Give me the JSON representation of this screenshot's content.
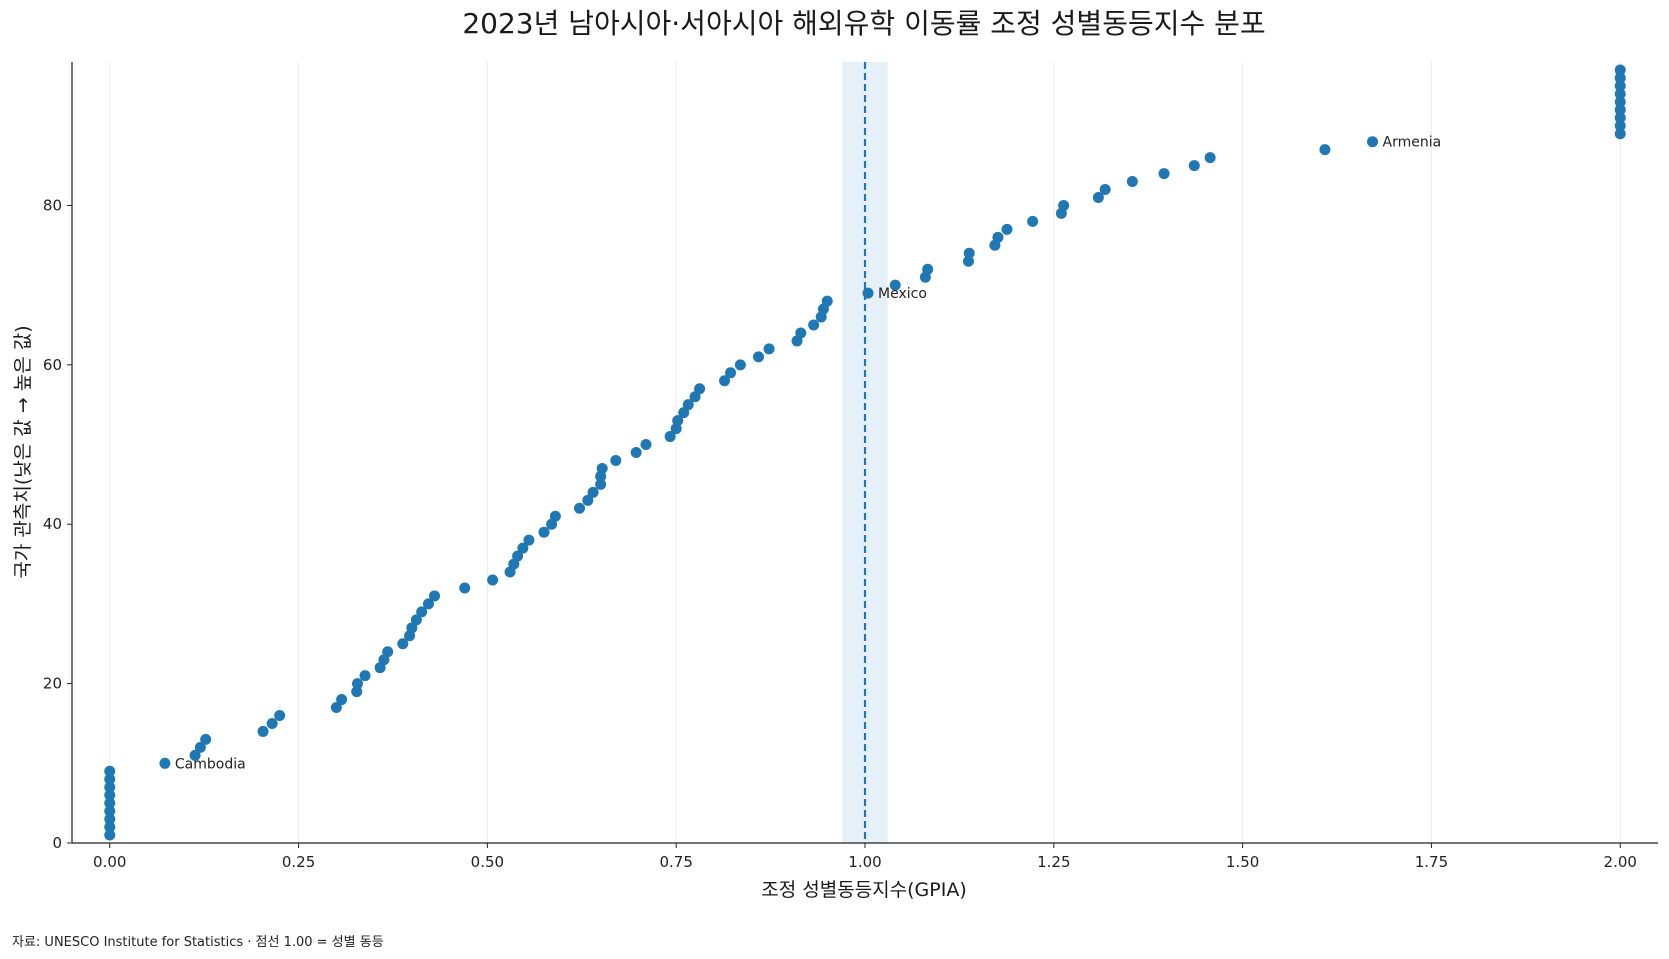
{
  "chart_data": {
    "type": "scatter",
    "title": "2023년 남아시아·서아시아 해외유학 이동률 조정 성별동등지수 분포",
    "xlabel": "조정 성별동등지수(GPIA)",
    "ylabel": "국가 관측치(낮은 값 → 높은 값)",
    "xlim": [
      -0.05,
      2.05
    ],
    "ylim": [
      0,
      98
    ],
    "x_ticks": [
      0.0,
      0.25,
      0.5,
      0.75,
      1.0,
      1.25,
      1.5,
      1.75,
      2.0
    ],
    "x_tick_labels": [
      "0.00",
      "0.25",
      "0.50",
      "0.75",
      "1.00",
      "1.25",
      "1.50",
      "1.75",
      "2.00"
    ],
    "y_ticks": [
      0,
      20,
      40,
      60,
      80
    ],
    "y_tick_labels": [
      "0",
      "20",
      "40",
      "60",
      "80"
    ],
    "grid": "vertical only",
    "marker_color": "#1f77b4",
    "reference_line": {
      "x": 1.0,
      "style": "dashed",
      "color": "#1f77b4",
      "band": [
        0.97,
        1.03
      ],
      "band_color": "#e6f0f8"
    },
    "points": [
      {
        "x": 0.0,
        "y": 1
      },
      {
        "x": 0.0,
        "y": 2
      },
      {
        "x": 0.0,
        "y": 3
      },
      {
        "x": 0.0,
        "y": 4
      },
      {
        "x": 0.0,
        "y": 5
      },
      {
        "x": 0.0,
        "y": 6
      },
      {
        "x": 0.0,
        "y": 7
      },
      {
        "x": 0.0,
        "y": 8
      },
      {
        "x": 0.0,
        "y": 9
      },
      {
        "x": 0.073,
        "y": 10
      },
      {
        "x": 0.113,
        "y": 11
      },
      {
        "x": 0.12,
        "y": 12
      },
      {
        "x": 0.127,
        "y": 13
      },
      {
        "x": 0.203,
        "y": 14
      },
      {
        "x": 0.215,
        "y": 15
      },
      {
        "x": 0.225,
        "y": 16
      },
      {
        "x": 0.3,
        "y": 17
      },
      {
        "x": 0.307,
        "y": 18
      },
      {
        "x": 0.327,
        "y": 19
      },
      {
        "x": 0.328,
        "y": 20
      },
      {
        "x": 0.338,
        "y": 21
      },
      {
        "x": 0.358,
        "y": 22
      },
      {
        "x": 0.363,
        "y": 23
      },
      {
        "x": 0.368,
        "y": 24
      },
      {
        "x": 0.388,
        "y": 25
      },
      {
        "x": 0.397,
        "y": 26
      },
      {
        "x": 0.4,
        "y": 27
      },
      {
        "x": 0.406,
        "y": 28
      },
      {
        "x": 0.413,
        "y": 29
      },
      {
        "x": 0.422,
        "y": 30
      },
      {
        "x": 0.43,
        "y": 31
      },
      {
        "x": 0.47,
        "y": 32
      },
      {
        "x": 0.507,
        "y": 33
      },
      {
        "x": 0.53,
        "y": 34
      },
      {
        "x": 0.535,
        "y": 35
      },
      {
        "x": 0.54,
        "y": 36
      },
      {
        "x": 0.547,
        "y": 37
      },
      {
        "x": 0.555,
        "y": 38
      },
      {
        "x": 0.575,
        "y": 39
      },
      {
        "x": 0.585,
        "y": 40
      },
      {
        "x": 0.59,
        "y": 41
      },
      {
        "x": 0.622,
        "y": 42
      },
      {
        "x": 0.633,
        "y": 43
      },
      {
        "x": 0.64,
        "y": 44
      },
      {
        "x": 0.65,
        "y": 45
      },
      {
        "x": 0.65,
        "y": 46
      },
      {
        "x": 0.652,
        "y": 47
      },
      {
        "x": 0.67,
        "y": 48
      },
      {
        "x": 0.697,
        "y": 49
      },
      {
        "x": 0.71,
        "y": 50
      },
      {
        "x": 0.742,
        "y": 51
      },
      {
        "x": 0.75,
        "y": 52
      },
      {
        "x": 0.752,
        "y": 53
      },
      {
        "x": 0.76,
        "y": 54
      },
      {
        "x": 0.766,
        "y": 55
      },
      {
        "x": 0.775,
        "y": 56
      },
      {
        "x": 0.781,
        "y": 57
      },
      {
        "x": 0.814,
        "y": 58
      },
      {
        "x": 0.822,
        "y": 59
      },
      {
        "x": 0.835,
        "y": 60
      },
      {
        "x": 0.859,
        "y": 61
      },
      {
        "x": 0.873,
        "y": 62
      },
      {
        "x": 0.91,
        "y": 63
      },
      {
        "x": 0.915,
        "y": 64
      },
      {
        "x": 0.932,
        "y": 65
      },
      {
        "x": 0.942,
        "y": 66
      },
      {
        "x": 0.945,
        "y": 67
      },
      {
        "x": 0.95,
        "y": 68
      },
      {
        "x": 1.004,
        "y": 69
      },
      {
        "x": 1.04,
        "y": 70
      },
      {
        "x": 1.08,
        "y": 71
      },
      {
        "x": 1.083,
        "y": 72
      },
      {
        "x": 1.137,
        "y": 73
      },
      {
        "x": 1.138,
        "y": 74
      },
      {
        "x": 1.172,
        "y": 75
      },
      {
        "x": 1.176,
        "y": 76
      },
      {
        "x": 1.188,
        "y": 77
      },
      {
        "x": 1.222,
        "y": 78
      },
      {
        "x": 1.26,
        "y": 79
      },
      {
        "x": 1.263,
        "y": 80
      },
      {
        "x": 1.309,
        "y": 81
      },
      {
        "x": 1.318,
        "y": 82
      },
      {
        "x": 1.354,
        "y": 83
      },
      {
        "x": 1.396,
        "y": 84
      },
      {
        "x": 1.436,
        "y": 85
      },
      {
        "x": 1.457,
        "y": 86
      },
      {
        "x": 1.609,
        "y": 87
      },
      {
        "x": 1.672,
        "y": 88
      },
      {
        "x": 2.0,
        "y": 89
      },
      {
        "x": 2.0,
        "y": 90
      },
      {
        "x": 2.0,
        "y": 91
      },
      {
        "x": 2.0,
        "y": 92
      },
      {
        "x": 2.0,
        "y": 93
      },
      {
        "x": 2.0,
        "y": 94
      },
      {
        "x": 2.0,
        "y": 95
      },
      {
        "x": 2.0,
        "y": 96
      },
      {
        "x": 2.0,
        "y": 97
      }
    ],
    "annotations": [
      {
        "text": "Cambodia",
        "x": 0.073,
        "y": 10
      },
      {
        "text": "Mexico",
        "x": 1.004,
        "y": 69
      },
      {
        "text": "Armenia",
        "x": 1.672,
        "y": 88
      }
    ],
    "source": "자료: UNESCO Institute for Statistics · 점선 1.00 = 성별 동등"
  }
}
